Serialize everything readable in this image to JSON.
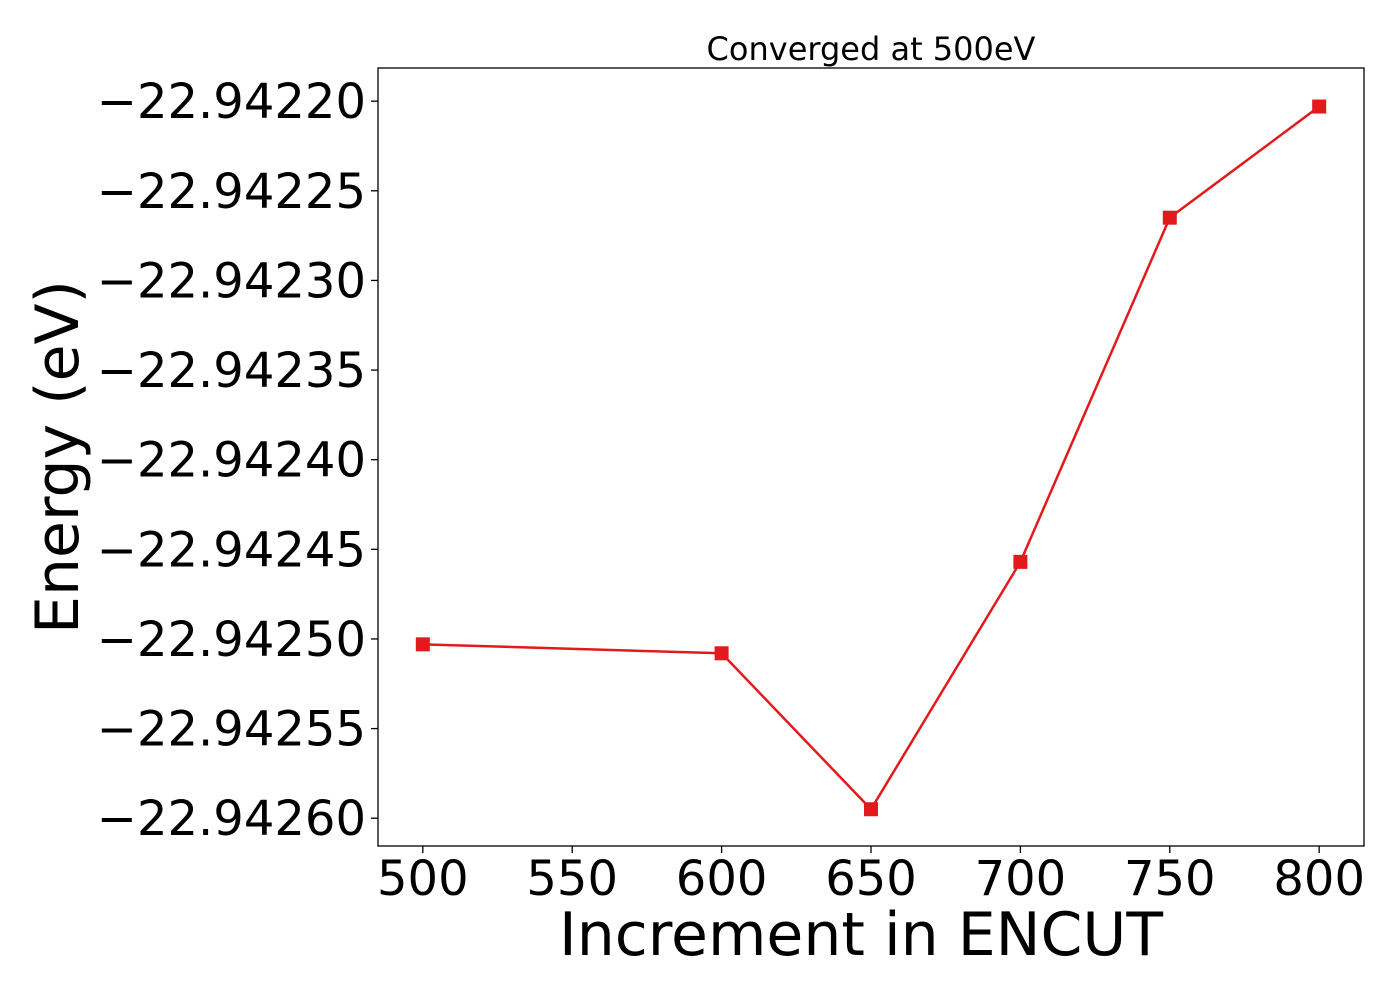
{
  "chart_data": {
    "type": "line",
    "title": "Converged at 500eV",
    "xlabel": "Increment in ENCUT",
    "ylabel": "Energy (eV)",
    "x": [
      500,
      600,
      650,
      700,
      750,
      800
    ],
    "series": [
      {
        "values": [
          -22.942503,
          -22.942508,
          -22.942595,
          -22.942457,
          -22.942265,
          -22.942203
        ],
        "color": "#e31a1c",
        "marker": "square"
      }
    ],
    "xlim": [
      485,
      815
    ],
    "ylim": [
      -22.9426155,
      -22.9421815
    ],
    "xticks": [
      500,
      550,
      600,
      650,
      700,
      750,
      800
    ],
    "xtick_labels": [
      "500",
      "550",
      "600",
      "650",
      "700",
      "750",
      "800"
    ],
    "yticks": [
      -22.9422,
      -22.94225,
      -22.9423,
      -22.94235,
      -22.9424,
      -22.94245,
      -22.9425,
      -22.94255,
      -22.9426
    ],
    "ytick_labels": [
      "−22.94220",
      "−22.94225",
      "−22.94230",
      "−22.94235",
      "−22.94240",
      "−22.94245",
      "−22.94250",
      "−22.94255",
      "−22.94260"
    ],
    "grid": false,
    "legend": "none"
  }
}
